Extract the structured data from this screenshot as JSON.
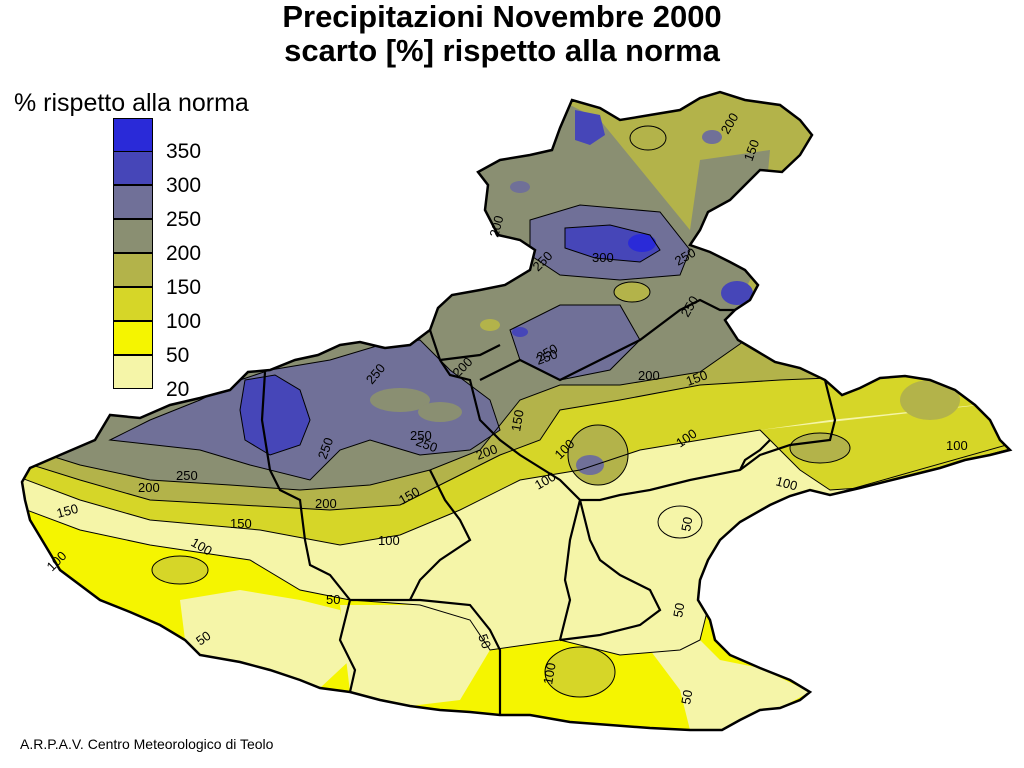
{
  "title": {
    "line1": "Precipitazioni Novembre 2000",
    "line2": "scarto [%] rispetto alla norma"
  },
  "legend": {
    "title": "% rispetto alla norma",
    "classes": [
      {
        "label": "350",
        "color": "#2a2ad8"
      },
      {
        "label": "300",
        "color": "#4646b8"
      },
      {
        "label": "250",
        "color": "#707098"
      },
      {
        "label": "200",
        "color": "#8a8f72"
      },
      {
        "label": "150",
        "color": "#b3b34a"
      },
      {
        "label": "100",
        "color": "#d6d628"
      },
      {
        "label": "50",
        "color": "#f5f500"
      },
      {
        "label": "20",
        "color": "#f5f5a8"
      }
    ]
  },
  "isolines": {
    "labels": [
      "200",
      "150",
      "300",
      "250",
      "250",
      "200",
      "250",
      "200",
      "150",
      "250",
      "250",
      "250",
      "200",
      "150",
      "100",
      "250",
      "250",
      "200",
      "150",
      "100",
      "150",
      "200",
      "250",
      "250",
      "200",
      "150",
      "100",
      "100",
      "100",
      "100",
      "100",
      "100",
      "50",
      "50",
      "50",
      "50",
      "50",
      "100",
      "50"
    ]
  },
  "credit": "A.R.P.A.V. Centro Meteorologico di Teolo"
}
